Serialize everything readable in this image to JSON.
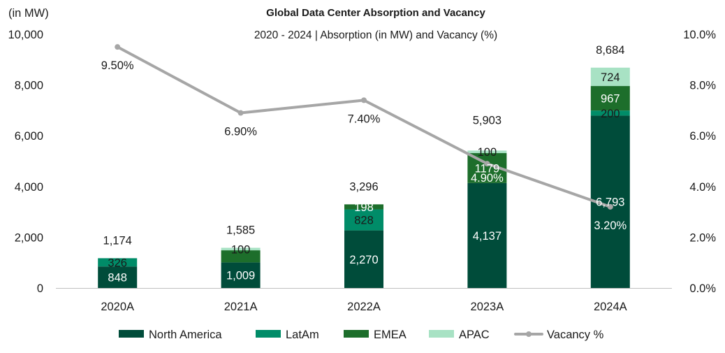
{
  "chart_data": {
    "type": "bar",
    "title": "Global Data Center Absorption and Vacancy",
    "subtitle": "2020 - 2024 | Absorption (in MW) and Vacancy (%)",
    "ylabel": "(in MW)",
    "ylim": [
      0,
      10000
    ],
    "y_ticks": [
      "0",
      "2,000",
      "4,000",
      "6,000",
      "8,000",
      "10,000"
    ],
    "y2lim": [
      0,
      10
    ],
    "y2_ticks": [
      "0.0%",
      "2.0%",
      "4.0%",
      "6.0%",
      "8.0%",
      "10.0%"
    ],
    "categories": [
      "2020A",
      "2021A",
      "2022A",
      "2023A",
      "2024A"
    ],
    "series": [
      {
        "name": "North America",
        "color": "#004c3a",
        "values": [
          848,
          1009,
          2270,
          4137,
          6793
        ],
        "labels": [
          "848",
          "1,009",
          "2,270",
          "4,137",
          "6,793"
        ],
        "label_color": "#ffffff"
      },
      {
        "name": "LatAm",
        "color": "#008c68",
        "values": [
          326,
          0,
          828,
          0,
          200
        ],
        "labels": [
          "326",
          "",
          "828",
          "",
          "200"
        ],
        "label_color": "#1a1a1a"
      },
      {
        "name": "EMEA",
        "color": "#1d6e2b",
        "values": [
          0,
          476,
          198,
          1179,
          967
        ],
        "labels": [
          "",
          "",
          "198",
          "1179",
          "967"
        ],
        "label_color": "#ffffff"
      },
      {
        "name": "APAC",
        "color": "#a8e2c4",
        "values": [
          0,
          100,
          0,
          100,
          724
        ],
        "labels": [
          "",
          "100",
          "",
          "100",
          "724"
        ],
        "label_color": "#1a1a1a"
      }
    ],
    "totals": [
      "1,174",
      "1,585",
      "3,296",
      "5,903",
      "8,684"
    ],
    "total_values": [
      1174,
      1585,
      3296,
      5903,
      8684
    ],
    "vacancy": {
      "name": "Vacancy %",
      "color": "#a6a6a6",
      "values": [
        9.5,
        6.9,
        7.4,
        4.9,
        3.2
      ],
      "labels": [
        "9.50%",
        "6.90%",
        "7.40%",
        "4.90%",
        "3.20%"
      ]
    },
    "legend": [
      "North America",
      "LatAm",
      "EMEA",
      "APAC",
      "Vacancy %"
    ],
    "legend_position": "bottom",
    "grid": false
  }
}
